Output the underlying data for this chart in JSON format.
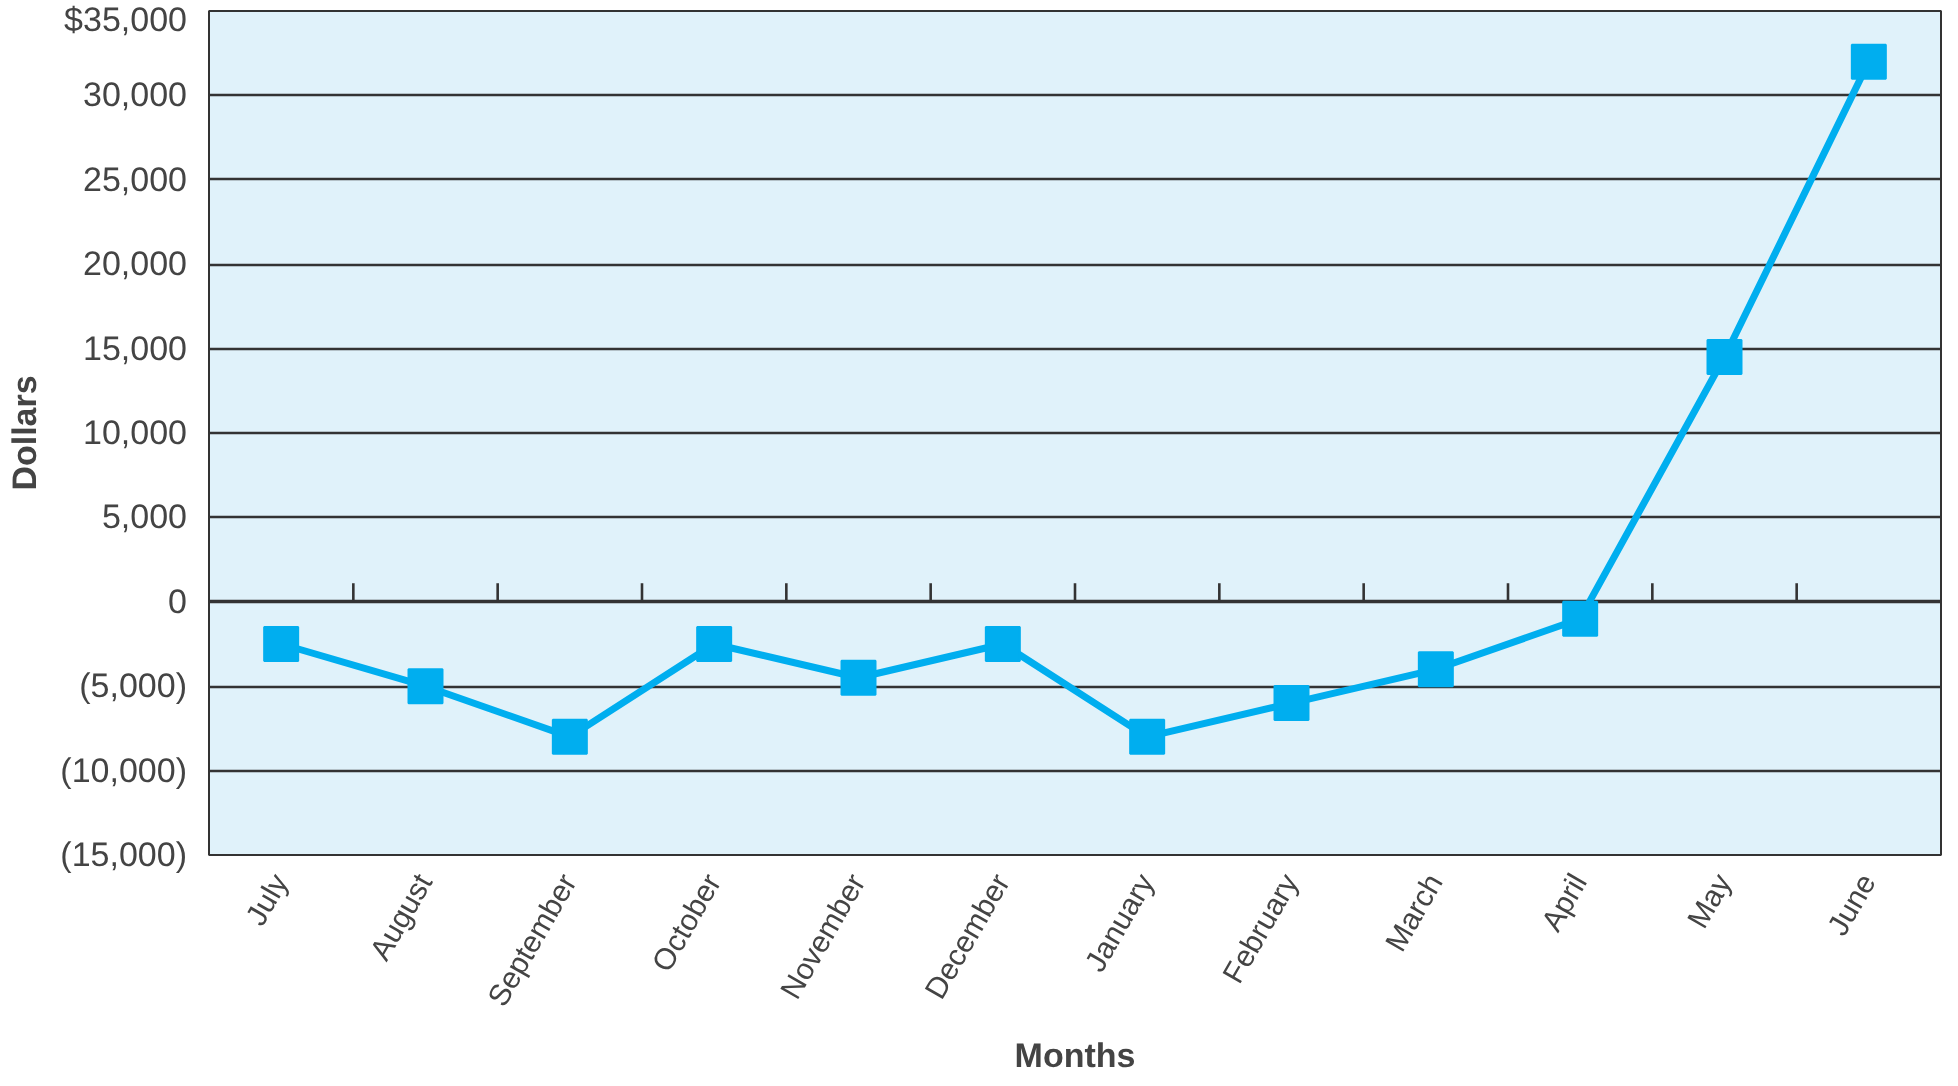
{
  "chart_data": {
    "type": "line",
    "xlabel": "Months",
    "ylabel": "Dollars",
    "categories": [
      "July",
      "August",
      "September",
      "October",
      "November",
      "December",
      "January",
      "February",
      "March",
      "April",
      "May",
      "June"
    ],
    "series": [
      {
        "color": "#00aeef",
        "values": [
          -2500,
          -5000,
          -8000,
          -2500,
          -4500,
          -2500,
          -8000,
          -6000,
          -4000,
          -1000,
          14500,
          32000
        ]
      }
    ],
    "ylim": [
      -15000,
      35000
    ],
    "yticks": [
      {
        "value": -15000,
        "label": "(15,000)"
      },
      {
        "value": -10000,
        "label": "(10,000)"
      },
      {
        "value": -5000,
        "label": "(5,000)"
      },
      0,
      {
        "value": 5000,
        "label": "5,000"
      },
      {
        "value": 10000,
        "label": "10,000"
      },
      {
        "value": 15000,
        "label": "15,000"
      },
      {
        "value": 20000,
        "label": "20,000"
      },
      {
        "value": 25000,
        "label": "25,000"
      },
      {
        "value": 30000,
        "label": "30,000"
      },
      {
        "value": 35000,
        "label": "$35,000"
      }
    ],
    "grid": "y",
    "marker": "square",
    "line_style": "solid"
  }
}
